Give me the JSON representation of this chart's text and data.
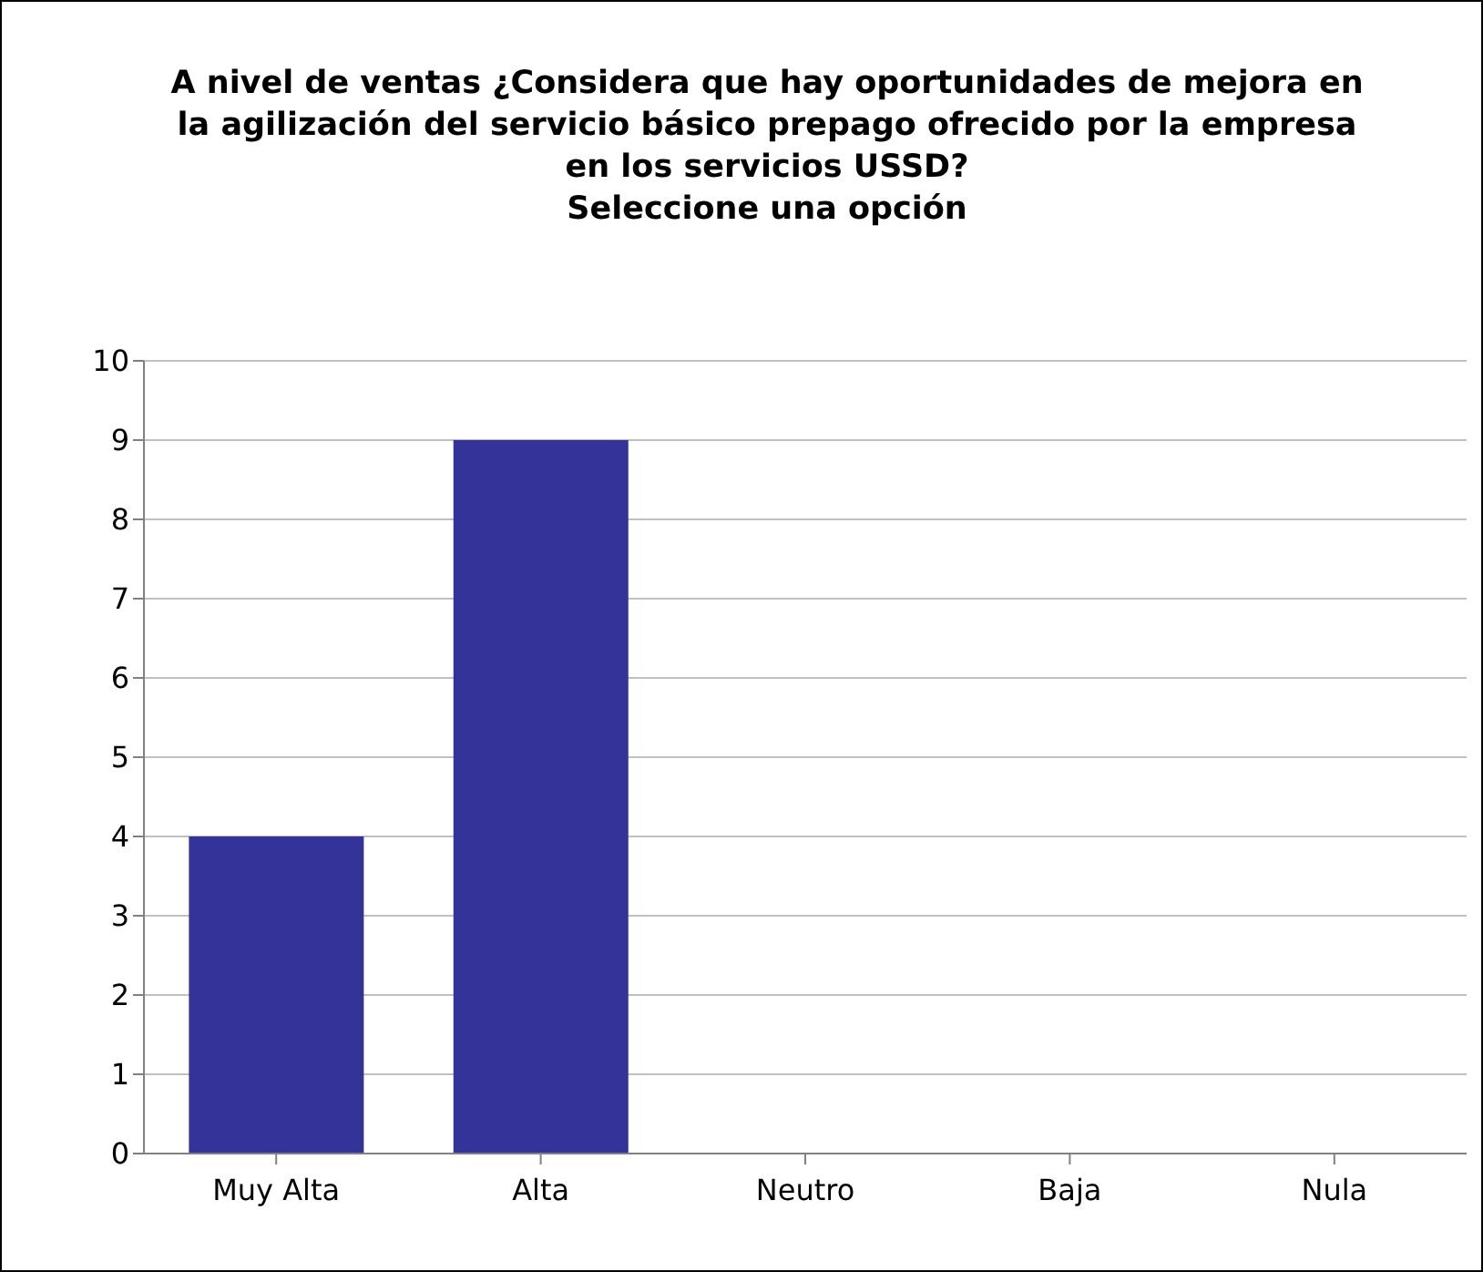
{
  "chart_data": {
    "type": "bar",
    "title": "A nivel de ventas ¿Considera que hay oportunidades de mejora en la agilización del servicio básico prepago ofrecido por la empresa en los servicios USSD?\nSeleccione una opción",
    "categories": [
      "Muy Alta",
      "Alta",
      "Neutro",
      "Baja",
      "Nula"
    ],
    "values": [
      4,
      9,
      0,
      0,
      0
    ],
    "color": "#333399",
    "ylim": [
      0,
      10
    ],
    "yticks": [
      0,
      1,
      2,
      3,
      4,
      5,
      6,
      7,
      8,
      9,
      10
    ],
    "grid": "y",
    "legend": false
  }
}
